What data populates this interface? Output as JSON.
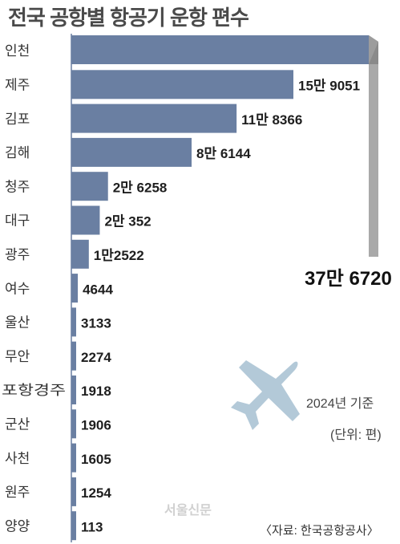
{
  "chart_data": {
    "type": "bar",
    "title": "전국 공항별 항공기 운항 편수",
    "categories": [
      "인천",
      "제주",
      "김포",
      "김해",
      "청주",
      "대구",
      "광주",
      "여수",
      "울산",
      "무안",
      "포항경주",
      "군산",
      "사천",
      "원주",
      "양양"
    ],
    "values": [
      376720,
      159051,
      118366,
      86144,
      26258,
      20352,
      12522,
      4644,
      3133,
      2274,
      1918,
      1906,
      1605,
      1254,
      113
    ],
    "value_labels": [
      "37만 6720",
      "15만 9051",
      "11만 8366",
      "8만 6144",
      "2만 6258",
      "2만 352",
      "1만2522",
      "4644",
      "3133",
      "2274",
      "1918",
      "1906",
      "1605",
      "1254",
      "113"
    ],
    "orientation": "horizontal",
    "note": "2024년 기준",
    "unit": "(단위: 편)",
    "source": "〈자료: 한국공항공사〉",
    "watermark": "서울신문",
    "colors": {
      "bar": "#6a7fa2",
      "bar_top": "#8798b6",
      "fold": "#a9a9a9",
      "fold_dark": "#8a8a8a",
      "airplane": "#b3c9d8"
    }
  }
}
